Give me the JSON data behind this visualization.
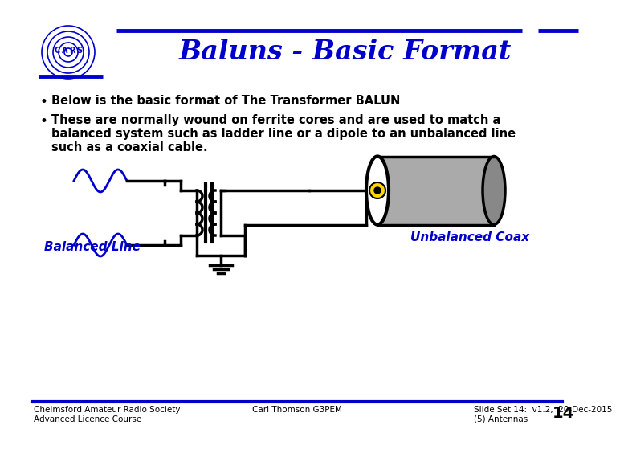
{
  "title": "Baluns - Basic Format",
  "title_color": "#0000CC",
  "background_color": "#FFFFFF",
  "bullet1": "Below is the basic format of The Transformer BALUN",
  "bullet2_line1": "These are normally wound on ferrite cores and are used to match a",
  "bullet2_line2": "balanced system such as ladder line or a dipole to an unbalanced line",
  "bullet2_line3": "such as a coaxial cable.",
  "label_balanced": "Balanced Line",
  "label_unbalanced": "Unbalanced Coax",
  "footer_left": "Chelmsford Amateur Radio Society\nAdvanced Licence Course",
  "footer_center": "Carl Thomson G3PEM",
  "footer_right": "Slide Set 14:  v1.2,  20-Dec-2015\n(5) Antennas",
  "slide_number": "14",
  "header_line_color": "#0000CC",
  "label_color": "#0000CC",
  "diagram_line_color": "#000000",
  "wave_color": "#0000CC",
  "footer_line_color": "#0000CC",
  "coil_gray": "#AAAAAA",
  "coil_dark_gray": "#888888",
  "yellow": "#FFD700"
}
